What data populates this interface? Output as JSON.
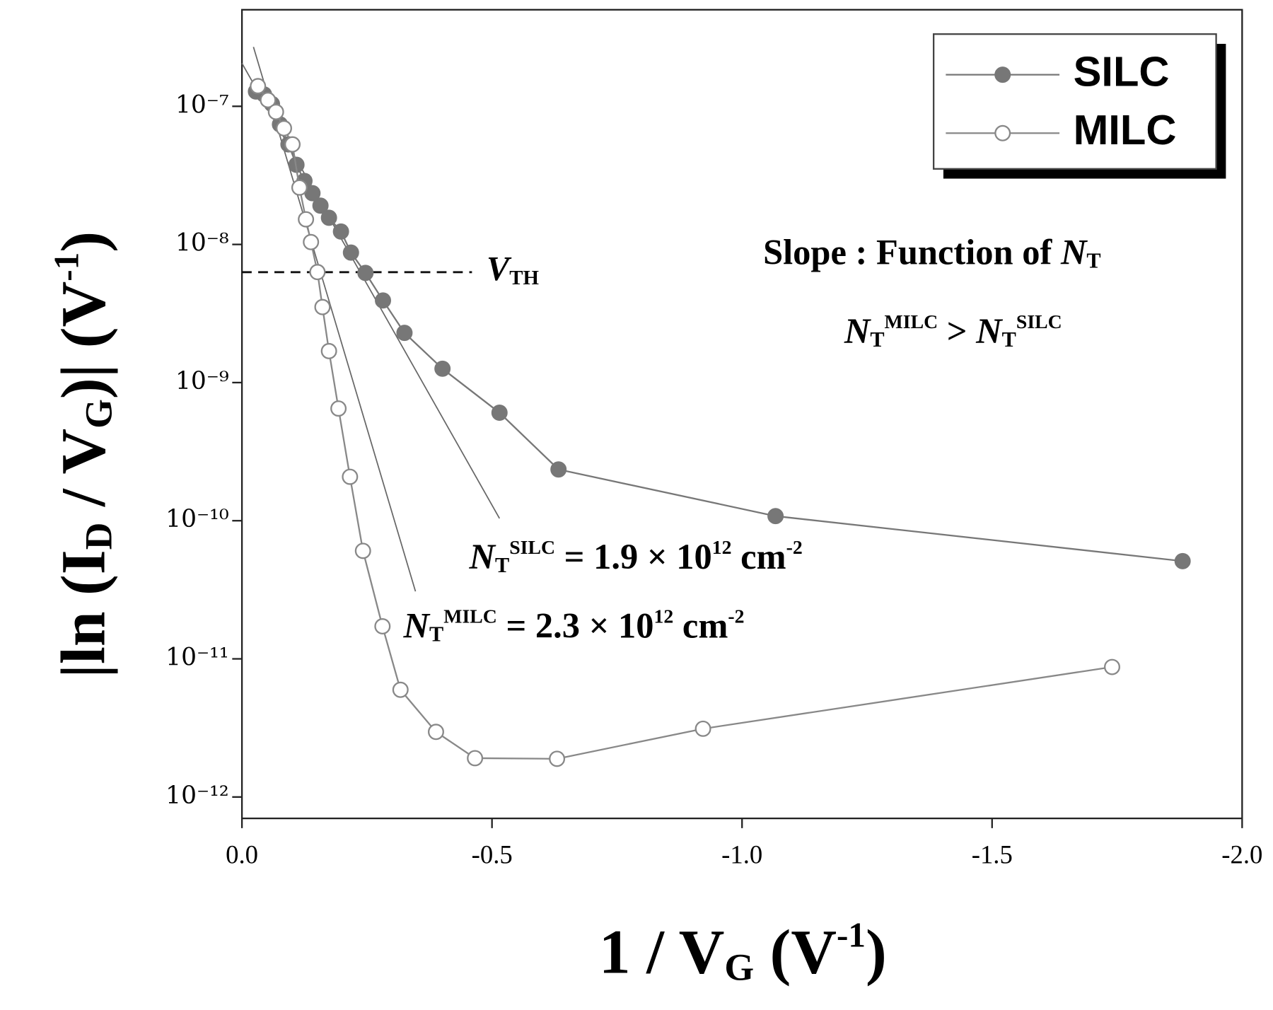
{
  "chart_data": {
    "type": "line",
    "x_label": [
      {
        "text": "1 / V"
      },
      {
        "text": "G",
        "role": "sub"
      },
      {
        "text": "  (V"
      },
      {
        "text": "-1",
        "role": "sup"
      },
      {
        "text": ")"
      }
    ],
    "y_label": [
      {
        "text": "|ln (I"
      },
      {
        "text": "D",
        "role": "sub"
      },
      {
        "text": " / V"
      },
      {
        "text": "G",
        "role": "sub"
      },
      {
        "text": ")| (V"
      },
      {
        "text": "-1",
        "role": "sup"
      },
      {
        "text": ")"
      }
    ],
    "xlim": [
      0,
      -2.0
    ],
    "xticks": [
      {
        "value": 0,
        "label": "0.0"
      },
      -0.5,
      {
        "value": -1.0,
        "label": "-1.0"
      },
      -1.5,
      {
        "value": -2.0,
        "label": "-2.0"
      }
    ],
    "ylim": [
      7e-13,
      5e-07
    ],
    "log_y": true,
    "yticks": [
      {
        "value": 1e-12,
        "label": "10⁻¹²"
      },
      {
        "value": 1e-11,
        "label": "10⁻¹¹"
      },
      {
        "value": 1e-10,
        "label": "10⁻¹⁰"
      },
      {
        "value": 1e-09,
        "label": "10⁻⁹"
      },
      {
        "value": 1e-08,
        "label": "10⁻⁸"
      },
      {
        "value": 1e-07,
        "label": "10⁻⁷"
      }
    ],
    "legend": "top-right",
    "series": [
      {
        "name": "SILC",
        "color": "#777777",
        "marker": "filled",
        "x": [
          -0.028,
          -0.044,
          -0.06,
          -0.076,
          -0.093,
          -0.109,
          -0.125,
          -0.141,
          -0.157,
          -0.174,
          -0.198,
          -0.218,
          -0.247,
          -0.282,
          -0.325,
          -0.401,
          -0.515,
          -0.633,
          -1.067,
          -1.881
        ],
        "values": [
          1.28e-07,
          1.22e-07,
          1.04e-07,
          7.4e-08,
          5.3e-08,
          3.77e-08,
          2.88e-08,
          2.35e-08,
          1.91e-08,
          1.56e-08,
          1.24e-08,
          8.73e-09,
          6.22e-09,
          3.93e-09,
          2.29e-09,
          1.26e-09,
          6.05e-10,
          2.35e-10,
          1.08e-10,
          5.1e-11
        ]
      },
      {
        "name": "MILC",
        "color": "#888888",
        "marker": "open",
        "x": [
          -0.032,
          -0.052,
          -0.068,
          -0.084,
          -0.101,
          -0.115,
          -0.128,
          -0.138,
          -0.151,
          -0.161,
          -0.174,
          -0.193,
          -0.216,
          -0.242,
          -0.281,
          -0.317,
          -0.388,
          -0.466,
          -0.63,
          -0.922,
          -1.74
        ],
        "values": [
          1.4e-07,
          1.11e-07,
          9.1e-08,
          6.93e-08,
          5.3e-08,
          2.58e-08,
          1.52e-08,
          1.04e-08,
          6.31e-09,
          3.52e-09,
          1.69e-09,
          6.49e-10,
          2.08e-10,
          6.05e-11,
          1.72e-11,
          5.97e-12,
          2.96e-12,
          1.91e-12,
          1.89e-12,
          3.12e-12,
          8.73e-12
        ]
      }
    ],
    "fit_lines": [
      {
        "x": [
          0,
          -0.515
        ],
        "y": [
          2.05e-07,
          1.04e-10
        ]
      },
      {
        "x": [
          -0.023,
          -0.347
        ],
        "y": [
          2.69e-07,
          3.08e-11
        ]
      }
    ],
    "threshold": {
      "y": 6.3e-09,
      "x": [
        0,
        -0.46
      ],
      "label": [
        {
          "text": "V",
          "role": "i"
        },
        {
          "text": "TH",
          "role": "sub"
        }
      ]
    },
    "annotations": [
      [
        {
          "text": "Slope : Function of "
        },
        {
          "text": "N",
          "role": "i"
        },
        {
          "text": "T",
          "role": "sub"
        }
      ],
      [
        {
          "text": "N",
          "role": "i"
        },
        {
          "text": "T",
          "role": "sub"
        },
        {
          "text": "MILC",
          "role": "sup"
        },
        {
          "text": " > "
        },
        {
          "text": "N",
          "role": "i"
        },
        {
          "text": "T",
          "role": "sub"
        },
        {
          "text": "SILC",
          "role": "sup"
        }
      ],
      [
        {
          "text": "N",
          "role": "i"
        },
        {
          "text": "T",
          "role": "sub"
        },
        {
          "text": "SILC",
          "role": "sup"
        },
        {
          "text": " = 1.9 × 10"
        },
        {
          "text": "12",
          "role": "sup"
        },
        {
          "text": " cm"
        },
        {
          "text": "-2",
          "role": "sup"
        }
      ],
      [
        {
          "text": "N",
          "role": "i"
        },
        {
          "text": "T",
          "role": "sub"
        },
        {
          "text": "MILC",
          "role": "sup"
        },
        {
          "text": " = 2.3 × 10"
        },
        {
          "text": "12",
          "role": "sup"
        },
        {
          "text": " cm"
        },
        {
          "text": "-2",
          "role": "sup"
        }
      ]
    ]
  }
}
